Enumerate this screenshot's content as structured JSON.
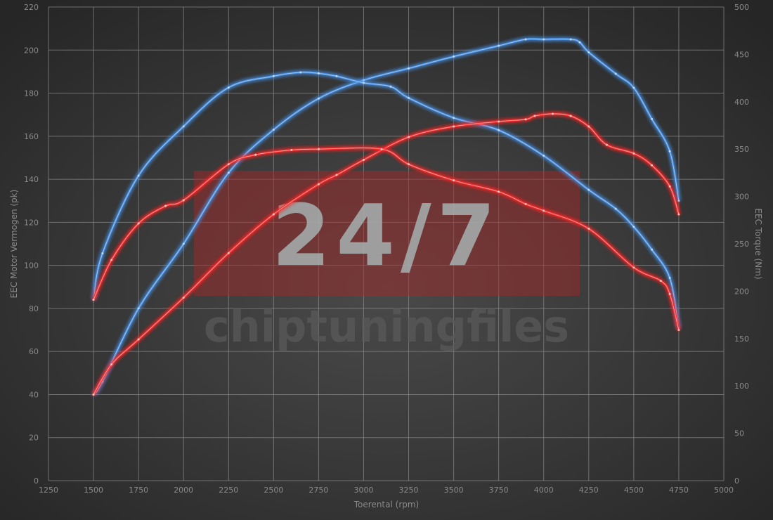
{
  "chart_data": {
    "type": "line",
    "title": "",
    "xlabel": "Toerental (rpm)",
    "ylabel_left": "EEC Motor Vermogen (pk)",
    "ylabel_right": "EEC Torque (Nm)",
    "xlim": [
      1250,
      5000
    ],
    "ylim_left": [
      0,
      220
    ],
    "ylim_right": [
      0,
      500
    ],
    "x_ticks": [
      "1250",
      "1500",
      "1750",
      "2000",
      "2250",
      "2500",
      "2750",
      "3000",
      "3250",
      "3500",
      "3750",
      "4000",
      "4250",
      "4500",
      "4750",
      "5000"
    ],
    "y_left_ticks": [
      "0",
      "20",
      "40",
      "60",
      "80",
      "100",
      "120",
      "140",
      "160",
      "180",
      "200",
      "220"
    ],
    "y_right_ticks": [
      "0",
      "50",
      "100",
      "150",
      "200",
      "250",
      "300",
      "350",
      "400",
      "450",
      "500"
    ],
    "grid": true,
    "legend": "none",
    "colors": {
      "blue": "#4a90e2",
      "red": "#ff2a2a",
      "background": "#3c3c3c",
      "grid": "#8c8c8c"
    },
    "series": [
      {
        "axis": "left",
        "color": "blue",
        "x": [
          1500,
          1550,
          1750,
          2000,
          2250,
          2500,
          2750,
          3000,
          3250,
          3500,
          3750,
          3900,
          4000,
          4150,
          4200,
          4250,
          4400,
          4500,
          4600,
          4700,
          4750
        ],
        "y": [
          40,
          46,
          80,
          110,
          143,
          163,
          177.5,
          186,
          191.5,
          197,
          202,
          205,
          205,
          205,
          203.6,
          199,
          189,
          182.5,
          168,
          153,
          130
        ]
      },
      {
        "axis": "right",
        "color": "blue",
        "x": [
          1500,
          1550,
          1750,
          2000,
          2250,
          2500,
          2650,
          2750,
          2850,
          3000,
          3150,
          3250,
          3500,
          3750,
          4000,
          4250,
          4400,
          4500,
          4600,
          4700,
          4750
        ],
        "y": [
          191,
          240,
          322,
          374,
          415,
          427,
          431,
          430,
          427,
          420,
          416,
          404,
          383,
          370,
          343,
          307,
          287,
          268,
          244,
          214,
          161
        ]
      },
      {
        "axis": "left",
        "color": "red",
        "x": [
          1500,
          1600,
          1750,
          2000,
          2250,
          2500,
          2750,
          2850,
          3000,
          3250,
          3500,
          3750,
          3900,
          3950,
          4050,
          4150,
          4250,
          4350,
          4500,
          4600,
          4700,
          4750
        ],
        "y": [
          40,
          54,
          65.6,
          85,
          105.7,
          123.7,
          137.7,
          142,
          149,
          159.6,
          164.5,
          166.8,
          167.8,
          169.4,
          170.4,
          169.4,
          164.5,
          156,
          152,
          146.5,
          136.7,
          123.7
        ]
      },
      {
        "axis": "right",
        "color": "red",
        "x": [
          1500,
          1600,
          1750,
          1900,
          2000,
          2250,
          2400,
          2600,
          2750,
          3100,
          3250,
          3500,
          3750,
          3900,
          4000,
          4250,
          4500,
          4650,
          4700,
          4750
        ],
        "y": [
          191,
          233,
          271.5,
          290,
          296,
          334,
          344,
          349,
          350,
          350,
          334,
          317,
          305,
          292,
          285,
          266,
          225,
          211,
          197,
          159
        ]
      }
    ]
  },
  "watermark": {
    "badge": "24/7",
    "brand": "chiptuningfiles",
    "badge_color": "#a02828"
  }
}
